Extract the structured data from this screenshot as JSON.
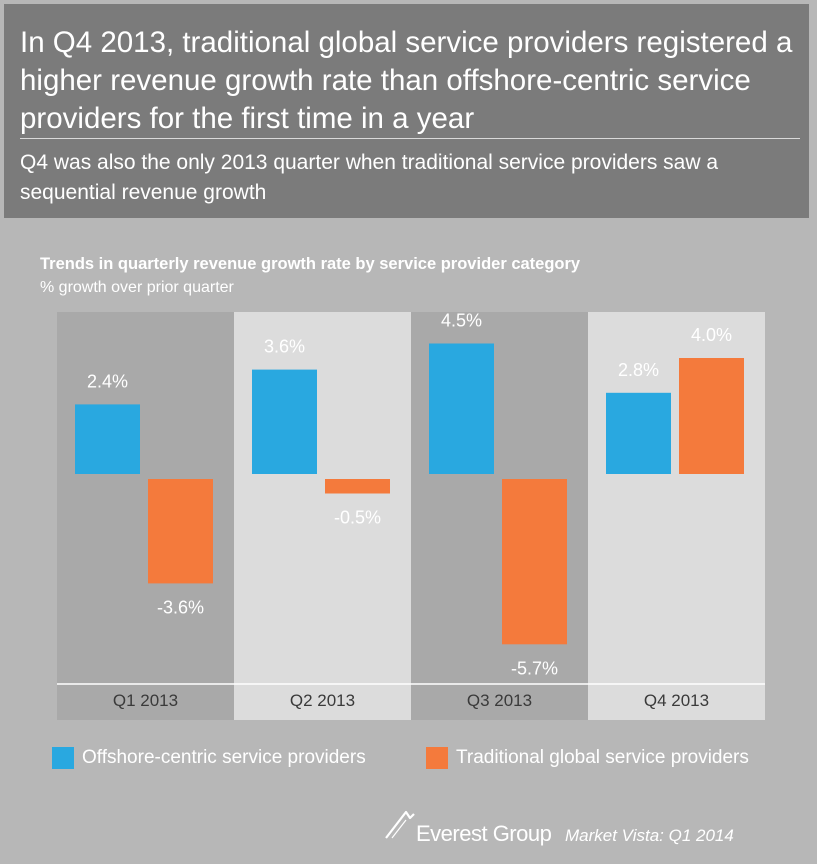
{
  "header": {
    "headline": "In Q4 2013, traditional global service providers registered a higher revenue growth rate than offshore-centric service providers for the first time in a year",
    "subhead": "Q4 was also the only 2013 quarter when traditional service providers saw a sequential revenue growth"
  },
  "chart_data": {
    "type": "bar",
    "title": "Trends in quarterly revenue growth rate by service provider category",
    "subtitle": "% growth over prior quarter",
    "categories": [
      "Q1 2013",
      "Q2 2013",
      "Q3 2013",
      "Q4 2013"
    ],
    "series": [
      {
        "name": "Offshore-centric service providers",
        "values": [
          2.4,
          3.6,
          4.5,
          2.8
        ],
        "labels": [
          "2.4%",
          "3.6%",
          "4.5%",
          "2.8%"
        ],
        "color": "#29a8e0"
      },
      {
        "name": "Traditional global service providers",
        "values": [
          -3.6,
          -0.5,
          -5.7,
          4.0
        ],
        "labels": [
          "-3.6%",
          "-0.5%",
          "-5.7%",
          "4.0%"
        ],
        "color": "#f47a3c"
      }
    ],
    "legend": "bottom",
    "grid": false
  },
  "colors": {
    "header_bg": "#7b7b7b",
    "page_bg": "#b7b7b7",
    "panel_dark": "#a9a9a9",
    "panel_light": "#dcdcdc"
  },
  "footer": {
    "brand": "Everest Group",
    "source": "Market Vista: Q1 2014",
    "logo_icon": "mountain-peak-icon"
  }
}
